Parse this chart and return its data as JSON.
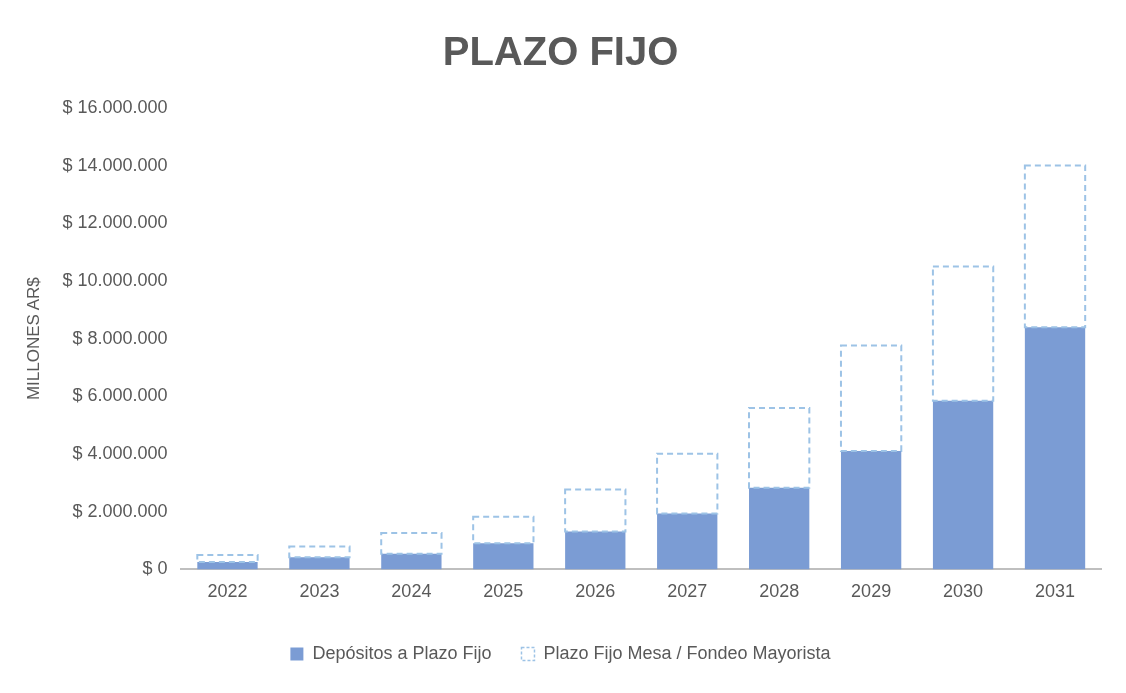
{
  "chart_data": {
    "type": "bar",
    "title": "PLAZO FIJO",
    "ylabel": "MILLONES AR$",
    "stacked": true,
    "grid": false,
    "legend": "bottom",
    "categories": [
      "2022",
      "2023",
      "2024",
      "2025",
      "2026",
      "2027",
      "2028",
      "2029",
      "2030",
      "2031"
    ],
    "ylim": [
      0,
      16000000
    ],
    "yticks": [
      {
        "value": 0,
        "label": "$ 0"
      },
      {
        "value": 2000000,
        "label": "$ 2.000.000"
      },
      {
        "value": 4000000,
        "label": "$ 4.000.000"
      },
      {
        "value": 6000000,
        "label": "$ 6.000.000"
      },
      {
        "value": 8000000,
        "label": "$ 8.000.000"
      },
      {
        "value": 10000000,
        "label": "$ 10.000.000"
      },
      {
        "value": 12000000,
        "label": "$ 12.000.000"
      },
      {
        "value": 14000000,
        "label": "$ 14.000.000"
      },
      {
        "value": 16000000,
        "label": "$ 16.000.000"
      }
    ],
    "series": [
      {
        "name": "Depósitos a Plazo Fijo",
        "color": "#7b9cd4",
        "line_style": "solid",
        "values": [
          260000,
          420000,
          540000,
          910000,
          1310000,
          1940000,
          2830000,
          4110000,
          5850000,
          8400000
        ]
      },
      {
        "name": "Plazo Fijo Mesa / Fondeo Mayorista",
        "color": "#9dc3e6",
        "line_style": "dashed",
        "values": [
          240000,
          370000,
          720000,
          920000,
          1460000,
          2070000,
          2770000,
          3650000,
          4650000,
          5610000
        ]
      }
    ]
  }
}
